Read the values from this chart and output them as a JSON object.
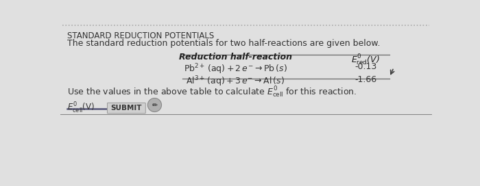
{
  "title": "STANDARD REDUCTION POTENTIALS",
  "subtitle": "The standard reduction potentials for two half-reactions are given below.",
  "col1_header": "Reduction half-reaction",
  "col2_header": "$E^{0}_{\\mathrm{red}}$(V)",
  "row1_reaction": "$\\mathrm{Pb}^{2+}\\,(\\mathrm{aq}) + 2\\,e^{-} \\rightarrow \\mathrm{Pb}\\,(s)$",
  "row1_value": "-0.13",
  "row2_reaction": "$\\mathrm{Al}^{3+}\\,(\\mathrm{aq}) + 3\\,e^{-} \\rightarrow \\mathrm{Al}\\,(s)$",
  "row2_value": "-1.66",
  "bottom_text1": "Use the values in the above table to calculate ",
  "bottom_text2": "$E^{0}_{\\mathrm{cell}}$",
  "bottom_text3": " for this reaction.",
  "input_label": "$E^{0}_{\\mathrm{cell}}$(V)",
  "submit_label": "SUBMIT",
  "bg_color": "#e0e0e0",
  "dotted_border_color": "#aaaaaa",
  "submit_button_color": "#d0d0d0",
  "title_fontsize": 8.5,
  "body_fontsize": 9,
  "table_fontsize": 9
}
